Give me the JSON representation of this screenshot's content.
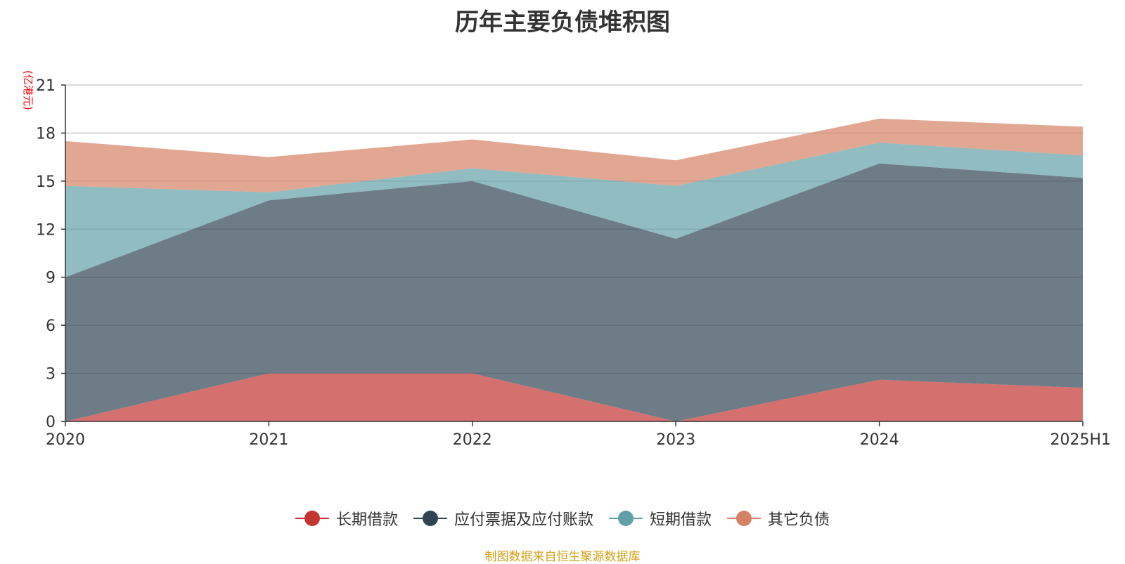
{
  "chart_data": {
    "type": "area",
    "title": "历年主要负债堆积图",
    "ylabel": "(亿港元)",
    "categories": [
      "2020",
      "2021",
      "2022",
      "2023",
      "2024",
      "2025H1"
    ],
    "ylim": [
      0,
      21
    ],
    "yticks": [
      0,
      3,
      6,
      9,
      12,
      15,
      18,
      21
    ],
    "stacked": true,
    "grid": true,
    "legend_position": "bottom",
    "series": [
      {
        "name": "长期借款",
        "values": [
          0.0,
          3.0,
          3.0,
          0.0,
          2.6,
          2.1
        ],
        "color": "#c23531"
      },
      {
        "name": "应付票据及应付账款",
        "values": [
          9.0,
          10.8,
          12.0,
          11.4,
          13.5,
          13.1
        ],
        "color": "#2f4554"
      },
      {
        "name": "短期借款",
        "values": [
          5.7,
          0.5,
          0.8,
          3.3,
          1.3,
          1.4
        ],
        "color": "#61a0a8"
      },
      {
        "name": "其它负债",
        "values": [
          2.8,
          2.2,
          1.8,
          1.6,
          1.5,
          1.8
        ],
        "color": "#d48265"
      }
    ]
  },
  "source_note": "制图数据来自恒生聚源数据库"
}
